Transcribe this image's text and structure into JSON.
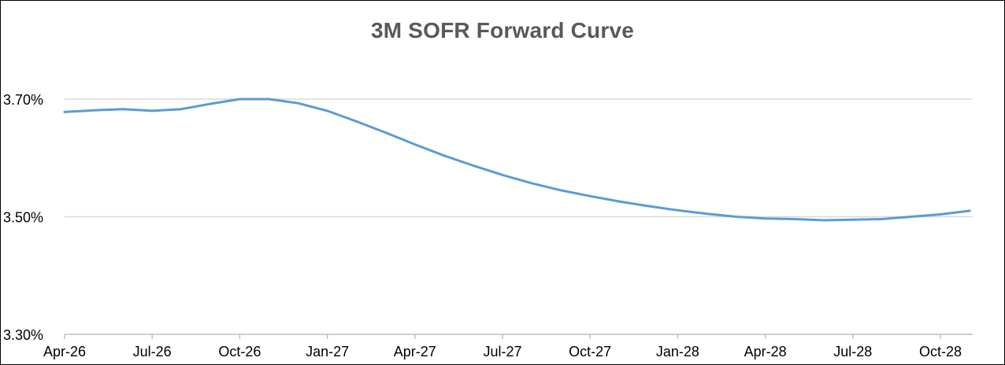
{
  "chart_data": {
    "type": "line",
    "title": "3M SOFR Forward Curve",
    "xlabel": "",
    "ylabel": "",
    "x_tick_labels": [
      "Apr-26",
      "Jul-26",
      "Oct-26",
      "Jan-27",
      "Apr-27",
      "Jul-27",
      "Oct-27",
      "Jan-28",
      "Apr-28",
      "Jul-28",
      "Oct-28"
    ],
    "y_tick_labels": [
      "3.30%",
      "3.50%",
      "3.70%"
    ],
    "ylim": [
      3.3,
      3.8
    ],
    "xlim": [
      "2026-04",
      "2028-11"
    ],
    "grid": "horizontal",
    "legend": "none",
    "line_color": "#5b9bd5",
    "series": [
      {
        "x": [
          "2026-04",
          "2026-05",
          "2026-06",
          "2026-07",
          "2026-08",
          "2026-09",
          "2026-10",
          "2026-11",
          "2026-12",
          "2027-01",
          "2027-02",
          "2027-03",
          "2027-04",
          "2027-05",
          "2027-06",
          "2027-07",
          "2027-08",
          "2027-09",
          "2027-10",
          "2027-11",
          "2027-12",
          "2028-01",
          "2028-02",
          "2028-03",
          "2028-04",
          "2028-05",
          "2028-06",
          "2028-07",
          "2028-08",
          "2028-09",
          "2028-10",
          "2028-11"
        ],
        "values": [
          3.678,
          3.681,
          3.683,
          3.68,
          3.683,
          3.692,
          3.7,
          3.7,
          3.693,
          3.68,
          3.662,
          3.643,
          3.623,
          3.604,
          3.587,
          3.571,
          3.557,
          3.545,
          3.535,
          3.526,
          3.518,
          3.511,
          3.505,
          3.5,
          3.497,
          3.496,
          3.494,
          3.495,
          3.496,
          3.5,
          3.504,
          3.51
        ]
      }
    ]
  }
}
